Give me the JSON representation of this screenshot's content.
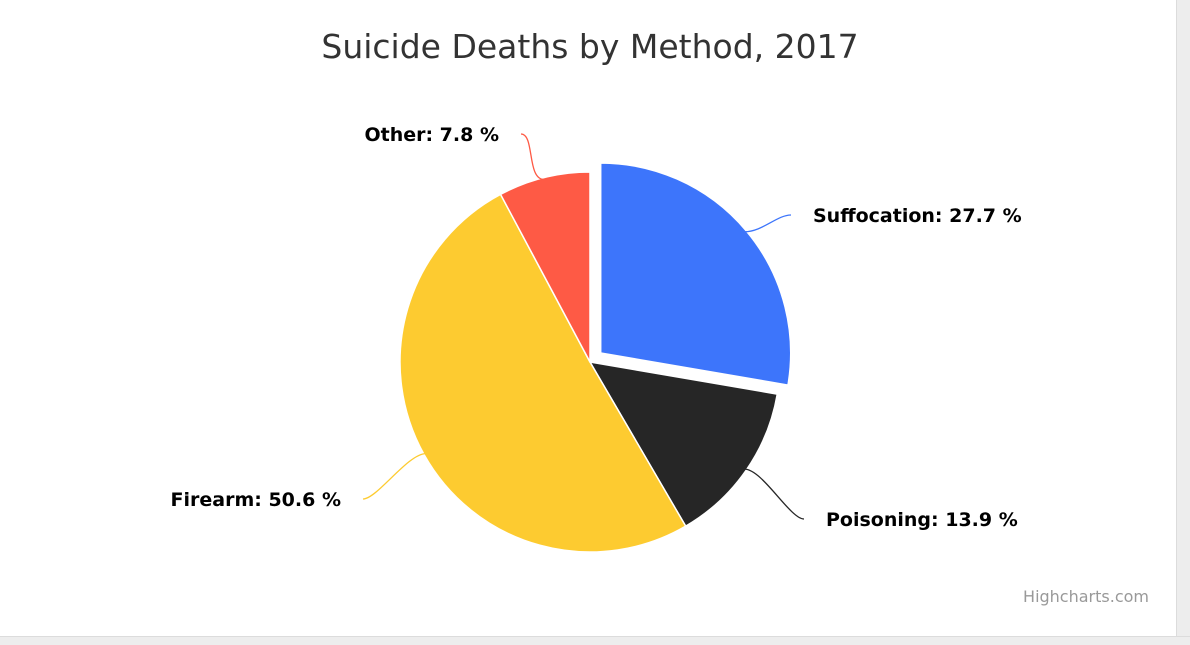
{
  "chart_data": {
    "type": "pie",
    "title": "Suicide Deaths by Method, 2017",
    "unit": "%",
    "slices": [
      {
        "name": "Suffocation",
        "value": 27.7,
        "color": "#3d75fb",
        "sliced": true
      },
      {
        "name": "Poisoning",
        "value": 13.9,
        "color": "#262626",
        "sliced": false
      },
      {
        "name": "Firearm",
        "value": 50.6,
        "color": "#fdcb30",
        "sliced": false
      },
      {
        "name": "Other",
        "value": 7.8,
        "color": "#fe5a45",
        "sliced": false
      }
    ],
    "data_labels": [
      "Suffocation: 27.7 %",
      "Poisoning: 13.9 %",
      "Firearm: 50.6 %",
      "Other: 7.8 %"
    ]
  },
  "credits": "Highcharts.com"
}
